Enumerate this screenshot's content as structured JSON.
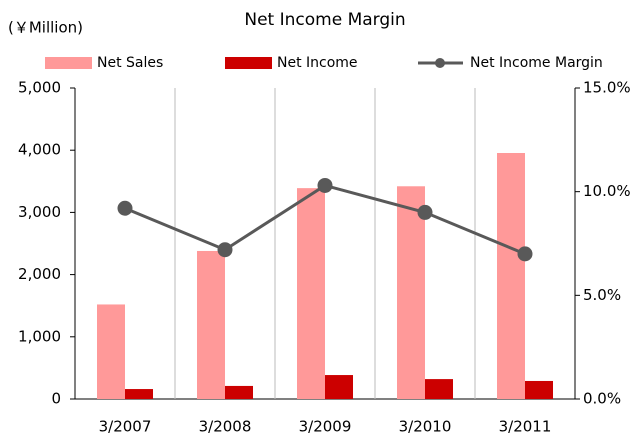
{
  "chart_data": {
    "type": "bar",
    "title": "Net Income Margin",
    "unit_label": "(￥Million)",
    "categories": [
      "3/2007",
      "3/2008",
      "3/2009",
      "3/2010",
      "3/2011"
    ],
    "series": [
      {
        "name": "Net Sales",
        "color": "#ff9999",
        "values": [
          1520,
          2380,
          3390,
          3420,
          3955
        ]
      },
      {
        "name": "Net Income",
        "color": "#cc0000",
        "values": [
          160,
          210,
          385,
          320,
          290
        ]
      },
      {
        "name": "Net Income Margin",
        "color": "#595959",
        "type": "line",
        "axis": "y2",
        "values": [
          9.2,
          7.2,
          10.3,
          9.0,
          7.0
        ]
      }
    ],
    "ylim": [
      0,
      5000
    ],
    "yticks": [
      0,
      {
        "value": 1000,
        "label": "1,000"
      },
      {
        "value": 2000,
        "label": "2,000"
      },
      {
        "value": 3000,
        "label": "3,000"
      },
      {
        "value": 4000,
        "label": "4,000"
      },
      {
        "value": 5000,
        "label": "5,000"
      }
    ],
    "y2lim": [
      0,
      15
    ],
    "y2ticks": [
      {
        "value": 0,
        "label": "0.0%"
      },
      {
        "value": 5,
        "label": "5.0%"
      },
      {
        "value": 10,
        "label": "10.0%"
      },
      {
        "value": 15,
        "label": "15.0%"
      }
    ],
    "legend": "top"
  }
}
